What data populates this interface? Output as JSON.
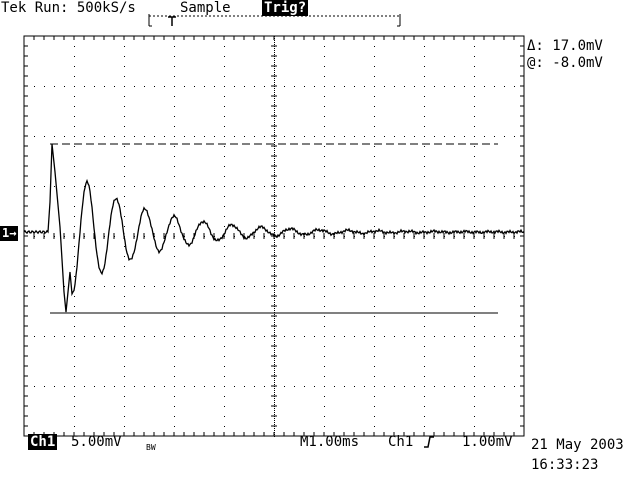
{
  "status": {
    "run_label": "Tek Run: 500kS/s",
    "acquisition": "Sample",
    "trigger_state": "Trig?"
  },
  "cursor": {
    "delta": "Δ: 17.0mV",
    "at": "@: -8.0mV"
  },
  "channel_marker": "1→",
  "bottom": {
    "channel": "Ch1",
    "volts_per_div": "5.00mV",
    "bw_limit": "BW",
    "timebase": "M1.00ms",
    "trigger_source": "Ch1",
    "trigger_slope_icon": "rising-edge-icon",
    "trigger_level": "1.00mV",
    "date": "21 May 2003",
    "time": "16:33:23"
  },
  "waveform": {
    "description_units": "divisions",
    "ringing_peaks_mV": [
      9.0,
      5.5,
      3.0,
      1.6,
      0.9,
      0.5
    ],
    "min_mV": -8.0,
    "baseline_mV": 0.0
  },
  "colors": {
    "background": "#ffffff",
    "trace": "#000000",
    "grid": "#000000"
  }
}
